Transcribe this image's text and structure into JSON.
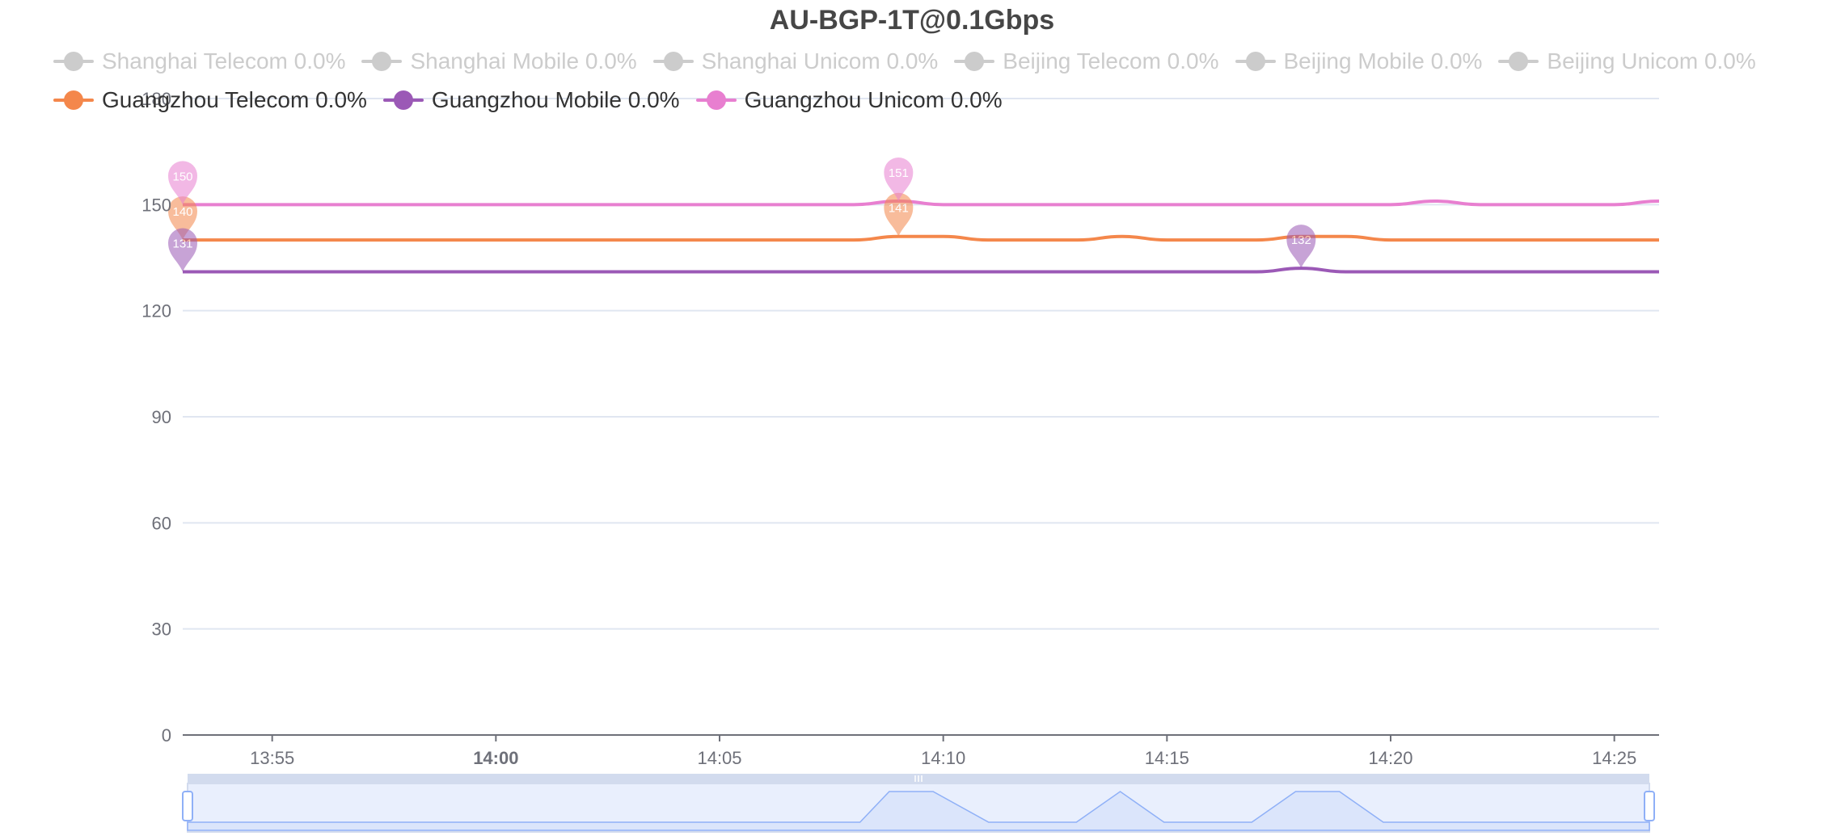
{
  "chart_data": {
    "type": "line",
    "title": "AU-BGP-1T@0.1Gbps",
    "xlabel": "",
    "ylabel": "",
    "ylim": [
      0,
      180
    ],
    "yticks": [
      0,
      30,
      60,
      90,
      120,
      150,
      180
    ],
    "x_range": [
      "13:53",
      "14:26"
    ],
    "xticks": [
      "13:55",
      "14:00",
      "14:05",
      "14:10",
      "14:15",
      "14:20",
      "14:25"
    ],
    "grid": true,
    "legend_position": "top",
    "zoom_slider": true,
    "series": [
      {
        "name": "Shanghai Telecom 0.0%",
        "color": "#cccccc",
        "active": false
      },
      {
        "name": "Shanghai Mobile 0.0%",
        "color": "#cccccc",
        "active": false
      },
      {
        "name": "Shanghai Unicom 0.0%",
        "color": "#cccccc",
        "active": false
      },
      {
        "name": "Beijing Telecom 0.0%",
        "color": "#cccccc",
        "active": false
      },
      {
        "name": "Beijing Mobile 0.0%",
        "color": "#cccccc",
        "active": false
      },
      {
        "name": "Beijing Unicom 0.0%",
        "color": "#cccccc",
        "active": false
      },
      {
        "name": "Guangzhou Telecom 0.0%",
        "color": "#f4874b",
        "active": true,
        "x": [
          "13:53",
          "14:08",
          "14:09",
          "14:10",
          "14:11",
          "14:13",
          "14:14",
          "14:15",
          "14:17",
          "14:18",
          "14:19",
          "14:20",
          "14:26"
        ],
        "values": [
          140,
          140,
          141,
          141,
          140,
          140,
          141,
          140,
          140,
          141,
          141,
          140,
          140
        ],
        "markers": [
          {
            "x": "13:53",
            "value": 140,
            "label": "140"
          },
          {
            "x": "14:09",
            "value": 141,
            "label": "141"
          }
        ]
      },
      {
        "name": "Guangzhou Mobile 0.0%",
        "color": "#9b59b6",
        "active": true,
        "x": [
          "13:53",
          "14:17",
          "14:18",
          "14:19",
          "14:26"
        ],
        "values": [
          131,
          131,
          132,
          131,
          131
        ],
        "markers": [
          {
            "x": "13:53",
            "value": 131,
            "label": "131"
          },
          {
            "x": "14:18",
            "value": 132,
            "label": "132"
          }
        ]
      },
      {
        "name": "Guangzhou Unicom 0.0%",
        "color": "#e87fd0",
        "active": true,
        "x": [
          "13:53",
          "14:08",
          "14:09",
          "14:10",
          "14:20",
          "14:21",
          "14:22",
          "14:25",
          "14:26"
        ],
        "values": [
          150,
          150,
          151,
          150,
          150,
          151,
          150,
          150,
          151
        ],
        "markers": [
          {
            "x": "13:53",
            "value": 150,
            "label": "150"
          },
          {
            "x": "14:09",
            "value": 151,
            "label": "151"
          }
        ]
      }
    ]
  },
  "colors": {
    "inactive_legend": "#cccccc",
    "active_legend_text": "#333333",
    "axis_text": "#6e7079",
    "grid": "#e0e6f1",
    "slider_fill": "#dbe5fb",
    "slider_border": "#8fb0f7"
  }
}
